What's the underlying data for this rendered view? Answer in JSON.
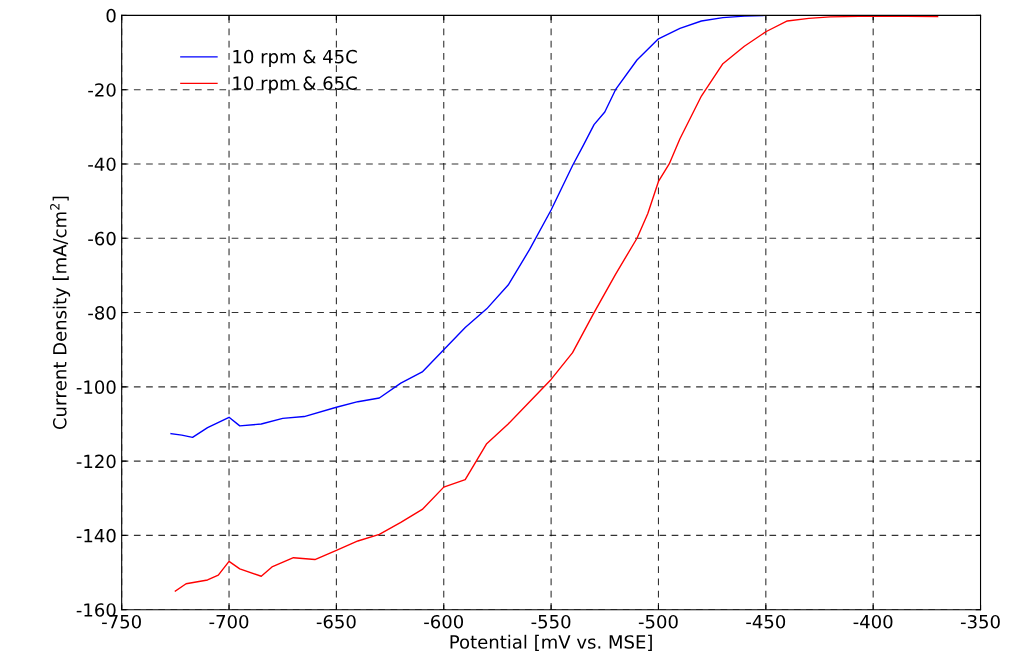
{
  "chart_data": {
    "type": "line",
    "xlabel": "Potential [mV vs. MSE]",
    "ylabel": "Current Density [mA/cm$^{2}$]",
    "xlim": [
      -750,
      -350
    ],
    "xticks": [
      -750,
      -700,
      -650,
      -600,
      -550,
      -500,
      -450,
      -400,
      -350
    ],
    "ylim": [
      -160,
      0
    ],
    "yticks": [
      -160,
      -140,
      -120,
      -100,
      -80,
      -60,
      -40,
      -20,
      0
    ],
    "grid": true,
    "legend": "top left",
    "line_style": "solid",
    "series": [
      {
        "name": "10 rpm & 45C",
        "color": "#0000ff",
        "x": [
          -727,
          -722,
          -717,
          -710,
          -700,
          -695,
          -685,
          -675,
          -665,
          -650,
          -640,
          -630,
          -620,
          -610,
          -600,
          -590,
          -580,
          -570,
          -560,
          -550,
          -540,
          -535,
          -530,
          -525,
          -520,
          -510,
          -500,
          -490,
          -480,
          -470,
          -460,
          -450
        ],
        "values": [
          -112.6,
          -113,
          -113.6,
          -111,
          -108.2,
          -110.5,
          -110,
          -108.5,
          -108,
          -105.5,
          -104,
          -103,
          -99,
          -96,
          -90,
          -84,
          -79,
          -72.6,
          -63,
          -52.4,
          -40.4,
          -35,
          -29.4,
          -26,
          -20,
          -12,
          -6.3,
          -3.5,
          -1.5,
          -0.6,
          -0.2,
          0
        ]
      },
      {
        "name": "10 rpm & 65C",
        "color": "#ff0000",
        "x": [
          -725,
          -720,
          -710,
          -705,
          -700,
          -695,
          -685,
          -680,
          -670,
          -660,
          -650,
          -640,
          -630,
          -620,
          -610,
          -600,
          -590,
          -580,
          -570,
          -560,
          -550,
          -540,
          -530,
          -520,
          -510,
          -505,
          -500,
          -495,
          -490,
          -480,
          -470,
          -460,
          -450,
          -440,
          -430,
          -420,
          -400,
          -370
        ],
        "values": [
          -155,
          -153,
          -152,
          -150.7,
          -147,
          -149,
          -151,
          -148.5,
          -146,
          -146.5,
          -144,
          -141.5,
          -139.7,
          -136.5,
          -133,
          -127,
          -125,
          -115.3,
          -110,
          -104,
          -98,
          -90.8,
          -80,
          -69.7,
          -60,
          -53.4,
          -44.7,
          -40,
          -33.2,
          -21.7,
          -13,
          -8.3,
          -4.4,
          -1.5,
          -0.8,
          -0.4,
          -0.2,
          -0.3
        ]
      }
    ]
  }
}
